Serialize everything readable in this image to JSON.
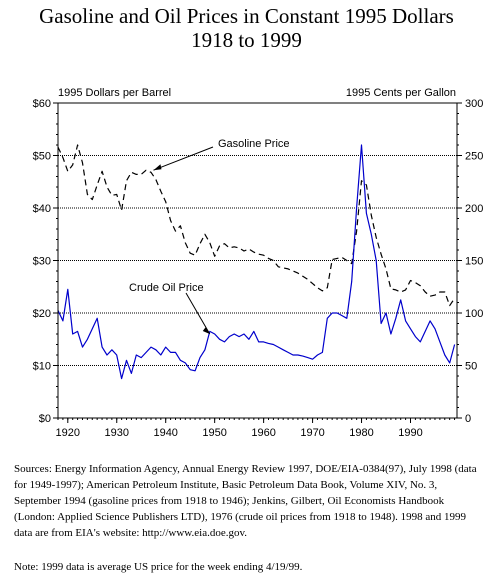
{
  "chart_data": {
    "type": "line",
    "title_line1": "Gasoline and Oil Prices in Constant 1995 Dollars",
    "title_line2": "1918 to 1999",
    "left_axis_label": "1995 Dollars per Barrel",
    "right_axis_label": "1995 Cents per Gallon",
    "xlim": [
      1918,
      1999.5
    ],
    "x_ticks": [
      1920,
      1930,
      1940,
      1950,
      1960,
      1970,
      1980,
      1990
    ],
    "x_tick_labels": [
      "1920",
      "1930",
      "1940",
      "1950",
      "1960",
      "1970",
      "1980",
      "1990"
    ],
    "left_ylim": [
      0,
      60
    ],
    "left_ticks": [
      0,
      10,
      20,
      30,
      40,
      50,
      60
    ],
    "left_tick_labels": [
      "$0",
      "$10",
      "$20",
      "$30",
      "$40",
      "$50",
      "$60"
    ],
    "right_ylim": [
      0,
      300
    ],
    "right_ticks": [
      0,
      50,
      100,
      150,
      200,
      250,
      300
    ],
    "right_tick_labels": [
      "0",
      "50",
      "100",
      "150",
      "200",
      "250",
      "300"
    ],
    "grid": "horizontal",
    "series": [
      {
        "name": "Gasoline Price",
        "axis": "right",
        "style": "dashed",
        "color": "#000000",
        "x": [
          1918,
          1919,
          1920,
          1921,
          1922,
          1923,
          1924,
          1925,
          1926,
          1927,
          1928,
          1929,
          1930,
          1931,
          1932,
          1933,
          1934,
          1935,
          1936,
          1937,
          1938,
          1939,
          1940,
          1941,
          1942,
          1943,
          1944,
          1945,
          1946,
          1947,
          1948,
          1949,
          1950,
          1951,
          1952,
          1953,
          1954,
          1955,
          1956,
          1957,
          1958,
          1959,
          1960,
          1961,
          1962,
          1963,
          1964,
          1965,
          1966,
          1967,
          1968,
          1969,
          1970,
          1971,
          1972,
          1973,
          1974,
          1975,
          1976,
          1977,
          1978,
          1979,
          1980,
          1981,
          1982,
          1983,
          1984,
          1985,
          1986,
          1987,
          1988,
          1989,
          1990,
          1991,
          1992,
          1993,
          1994,
          1995,
          1996,
          1997,
          1998,
          1999
        ],
        "values": [
          258,
          248,
          235,
          241,
          260,
          243,
          213,
          208,
          222,
          235,
          220,
          212,
          213,
          198,
          226,
          234,
          232,
          232,
          236,
          234,
          227,
          216,
          206,
          188,
          178,
          183,
          167,
          157,
          155,
          166,
          175,
          167,
          154,
          164,
          166,
          162,
          163,
          162,
          159,
          161,
          158,
          156,
          155,
          152,
          150,
          144,
          143,
          142,
          140,
          138,
          135,
          132,
          128,
          124,
          121,
          124,
          151,
          152,
          153,
          150,
          147,
          178,
          226,
          222,
          193,
          172,
          156,
          142,
          123,
          122,
          120,
          122,
          131,
          129,
          126,
          120,
          116,
          117,
          120,
          120,
          107,
          114
        ]
      },
      {
        "name": "Crude Oil Price",
        "axis": "left",
        "style": "solid",
        "color": "#0000cc",
        "x": [
          1918,
          1919,
          1920,
          1921,
          1922,
          1923,
          1924,
          1925,
          1926,
          1927,
          1928,
          1929,
          1930,
          1931,
          1932,
          1933,
          1934,
          1935,
          1936,
          1937,
          1938,
          1939,
          1940,
          1941,
          1942,
          1943,
          1944,
          1945,
          1946,
          1947,
          1948,
          1949,
          1950,
          1951,
          1952,
          1953,
          1954,
          1955,
          1956,
          1957,
          1958,
          1959,
          1960,
          1961,
          1962,
          1963,
          1964,
          1965,
          1966,
          1967,
          1968,
          1969,
          1970,
          1971,
          1972,
          1973,
          1974,
          1975,
          1976,
          1977,
          1978,
          1979,
          1980,
          1981,
          1982,
          1983,
          1984,
          1985,
          1986,
          1987,
          1988,
          1989,
          1990,
          1991,
          1992,
          1993,
          1994,
          1995,
          1996,
          1997,
          1998,
          1999
        ],
        "values": [
          20.5,
          18.5,
          24.5,
          16,
          16.5,
          13.5,
          15,
          17,
          19,
          13.5,
          12,
          13,
          12,
          7.5,
          11,
          8.5,
          12,
          11.5,
          12.5,
          13.5,
          13,
          12,
          13.5,
          12.5,
          12.5,
          11,
          10.5,
          9.2,
          9,
          11.5,
          13,
          16.5,
          16,
          15,
          14.5,
          15.5,
          16,
          15.5,
          16,
          15,
          16.5,
          14.5,
          14.5,
          14.2,
          14,
          13.5,
          13,
          12.5,
          12,
          12,
          11.8,
          11.5,
          11.2,
          12,
          12.5,
          19,
          20,
          20,
          19.5,
          19,
          26,
          40,
          52,
          39,
          35,
          30,
          18,
          20,
          16,
          19,
          22.5,
          18.5,
          17,
          15.5,
          14.5,
          16.5,
          18.5,
          17,
          14.5,
          12,
          10.5,
          14
        ]
      }
    ],
    "annotations": [
      {
        "text": "Gasoline Price",
        "points_to_series": "Gasoline Price"
      },
      {
        "text": "Crude Oil Price",
        "points_to_series": "Crude Oil Price"
      }
    ]
  },
  "footnotes": {
    "sources": "Sources:  Energy Information Agency, Annual Energy Review 1997, DOE/EIA-0384(97), July 1998 (data for 1949-1997); American Petroleum Institute, Basic Petroleum Data Book, Volume XIV, No. 3, September 1994 (gasoline prices from 1918 to 1946); Jenkins, Gilbert, Oil Economists Handbook (London: Applied Science Publishers LTD), 1976 (crude oil prices from 1918 to 1948). 1998 and 1999 data are from EIA's website: http://www.eia.doe.gov.",
    "note": "Note:  1999 data is average US price for the week ending 4/19/99."
  }
}
